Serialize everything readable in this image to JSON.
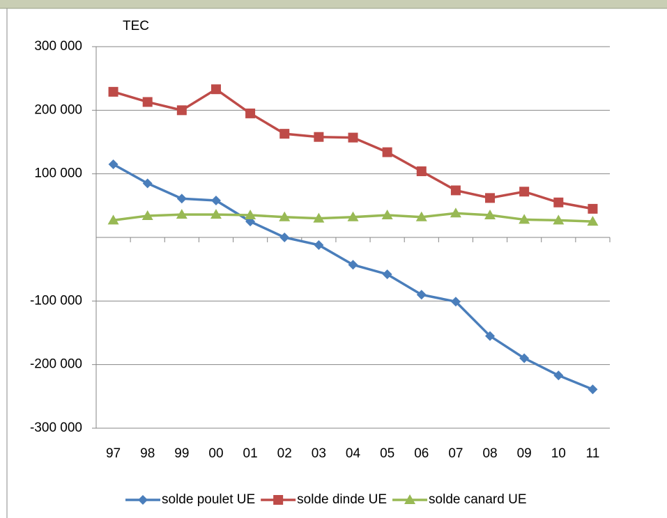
{
  "chart_data": {
    "type": "line",
    "y_label": "TEC",
    "categories": [
      "97",
      "98",
      "99",
      "00",
      "01",
      "02",
      "03",
      "04",
      "05",
      "06",
      "07",
      "08",
      "09",
      "10",
      "11"
    ],
    "series": [
      {
        "name": "solde poulet UE",
        "color": "#4a7ebb",
        "marker": "diamond",
        "values": [
          115000,
          85000,
          61000,
          58000,
          25000,
          0,
          -12000,
          -43000,
          -58000,
          -90000,
          -101000,
          -155000,
          -190000,
          -217000,
          -239000
        ]
      },
      {
        "name": "solde dinde UE",
        "color": "#be4b48",
        "marker": "square",
        "values": [
          229000,
          213000,
          200000,
          233000,
          195000,
          163000,
          158000,
          157000,
          134000,
          104000,
          74000,
          62000,
          72000,
          55000,
          45000
        ]
      },
      {
        "name": "solde canard UE",
        "color": "#98b954",
        "marker": "triangle",
        "values": [
          27000,
          34000,
          36000,
          36000,
          35000,
          32000,
          30000,
          32000,
          35000,
          32000,
          38000,
          35000,
          28000,
          27000,
          25000
        ]
      }
    ],
    "ylim": [
      -300000,
      300000
    ],
    "yticks": [
      {
        "value": -300000,
        "label": "-300 000"
      },
      {
        "value": -200000,
        "label": "-200 000"
      },
      {
        "value": -100000,
        "label": "-100 000"
      },
      {
        "value": 100000,
        "label": "100 000"
      },
      {
        "value": 200000,
        "label": "200 000"
      },
      {
        "value": 300000,
        "label": "300 000"
      }
    ],
    "grid": true,
    "legend": "bottom"
  }
}
